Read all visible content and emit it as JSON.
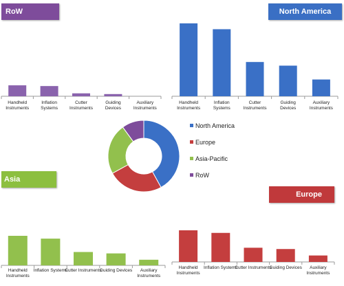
{
  "banners": {
    "row": {
      "label": "RoW",
      "color": "#7e4c9b"
    },
    "north_america": {
      "label": "North America",
      "color": "#3a6fc4"
    },
    "asia": {
      "label": "Asia",
      "color": "#8cbf3f"
    },
    "europe": {
      "label": "Europe",
      "color": "#c0393b"
    }
  },
  "chart_data": [
    {
      "id": "row",
      "type": "bar",
      "title": "RoW",
      "categories": [
        "Handheld Instruments",
        "Inflation Systems",
        "Cutter Instruments",
        "Guiding Devices",
        "Auxiliary Instruments"
      ],
      "tick_lines": [
        [
          "Handheld",
          "Instruments"
        ],
        [
          "Inflation",
          "Systems"
        ],
        [
          "Cutter",
          "Instruments"
        ],
        [
          "Guiding",
          "Devices"
        ],
        [
          "Auxiliary",
          "Instruments"
        ]
      ],
      "values": [
        15,
        14,
        4,
        3,
        0
      ],
      "ylim": [
        0,
        100
      ],
      "color": "#8a63ad",
      "grid": false
    },
    {
      "id": "north_america",
      "type": "bar",
      "title": "North America",
      "categories": [
        "Handheld Instruments",
        "Inflation Systems",
        "Cutter Instruments",
        "Guiding Devices",
        "Auxiliary Instruments"
      ],
      "tick_lines": [
        [
          "Handheld",
          "Instruments"
        ],
        [
          "Inflation",
          "Systems"
        ],
        [
          "Cutter",
          "Instruments"
        ],
        [
          "Guiding",
          "Devices"
        ],
        [
          "Auxiliary",
          "Instruments"
        ]
      ],
      "values": [
        100,
        92,
        47,
        42,
        23
      ],
      "ylim": [
        0,
        100
      ],
      "color": "#3a70c6",
      "grid": false
    },
    {
      "id": "asia",
      "type": "bar",
      "title": "Asia",
      "categories": [
        "Handheld Instruments",
        "Inflation Systems",
        "Cutter Instruments",
        "Guiding Devices",
        "Auxiliary Instruments"
      ],
      "tick_lines": [
        [
          "Handheld",
          "Instruments"
        ],
        [
          "Inflation Systems"
        ],
        [
          "Cutter Instruments"
        ],
        [
          "Guiding Devices"
        ],
        [
          "Auxiliary",
          "Instruments"
        ]
      ],
      "values": [
        42,
        38,
        19,
        17,
        8
      ],
      "ylim": [
        0,
        42
      ],
      "color": "#92c04d",
      "grid": false
    },
    {
      "id": "europe",
      "type": "bar",
      "title": "Europe",
      "categories": [
        "Handheld Instruments",
        "Inflation Systems",
        "Cutter Instruments",
        "Guiding Devices",
        "Auxiliary Instruments"
      ],
      "tick_lines": [
        [
          "Handheld",
          "Instruments"
        ],
        [
          "Inflation Systems"
        ],
        [
          "Cutter Instruments"
        ],
        [
          "Guiding Devices"
        ],
        [
          "Auxiliary",
          "Instruments"
        ]
      ],
      "values": [
        49,
        45,
        22,
        20,
        10
      ],
      "ylim": [
        0,
        49
      ],
      "color": "#c43e3e",
      "grid": false
    },
    {
      "id": "regional_share",
      "type": "pie",
      "donut": true,
      "labels": [
        "North America",
        "Europe",
        "Asia-Pacific",
        "RoW"
      ],
      "values": [
        42,
        25,
        23,
        10
      ],
      "colors": [
        "#3a70c6",
        "#c43e3e",
        "#92c04d",
        "#7e4c9b"
      ],
      "legend": "right"
    }
  ]
}
